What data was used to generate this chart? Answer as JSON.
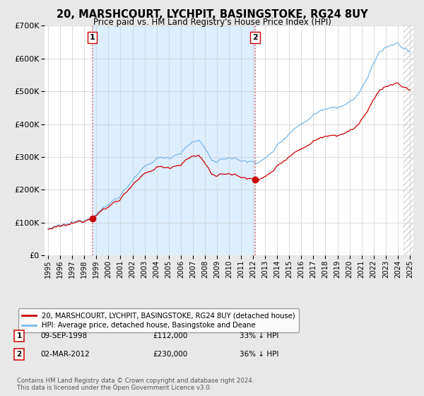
{
  "title": "20, MARSHCOURT, LYCHPIT, BASINGSTOKE, RG24 8UY",
  "subtitle": "Price paid vs. HM Land Registry's House Price Index (HPI)",
  "sale1_price": 112000,
  "sale1_label": "09-SEP-1998",
  "sale1_hpi_text": "33% ↓ HPI",
  "sale2_price": 230000,
  "sale2_label": "02-MAR-2012",
  "sale2_hpi_text": "36% ↓ HPI",
  "legend_line1": "20, MARSHCOURT, LYCHPIT, BASINGSTOKE, RG24 8UY (detached house)",
  "legend_line2": "HPI: Average price, detached house, Basingstoke and Deane",
  "footnote": "Contains HM Land Registry data © Crown copyright and database right 2024.\nThis data is licensed under the Open Government Licence v3.0.",
  "hpi_color": "#7ab8e8",
  "sale_color": "#cc0000",
  "vline_color": "#e06060",
  "shade_color": "#ddeeff",
  "ylim": [
    0,
    700000
  ],
  "xlim_start": 1994.7,
  "xlim_end": 2025.3,
  "background_color": "#e8e8e8",
  "plot_background": "#ffffff",
  "hatch_start": 2024.5
}
